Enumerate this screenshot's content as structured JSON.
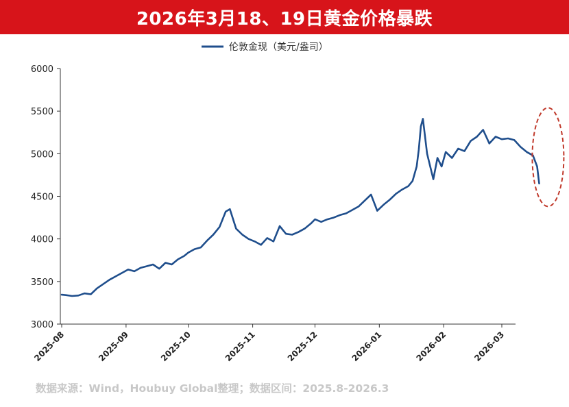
{
  "header": {
    "title": "2026年3月18、19日黄金价格暴跌"
  },
  "footer": {
    "source": "数据来源：Wind，Houbuy Global整理；数据区间：2025.8-2026.3"
  },
  "colors": {
    "title_bg": "#d7141a",
    "line": "#1f4e8c",
    "highlight": "#c0392b",
    "axis": "#333333"
  },
  "chart_data": {
    "type": "line",
    "title": "",
    "xlabel": "",
    "ylabel": "",
    "ylim": [
      3000,
      6000
    ],
    "yticks": [
      3000,
      3500,
      4000,
      4500,
      5000,
      5500,
      6000
    ],
    "xticks": [
      "2025-08",
      "2025-09",
      "2025-10",
      "2025-11",
      "2025-12",
      "2026-01",
      "2026-02",
      "2026-03"
    ],
    "grid": false,
    "legend": "top-center",
    "highlight": {
      "shape": "dashed-ellipse",
      "around": "2026-03 decline"
    },
    "series": [
      {
        "name": "伦敦金现（美元/盎司）",
        "x": [
          "2025-08-01",
          "2025-08-03",
          "2025-08-06",
          "2025-08-09",
          "2025-08-12",
          "2025-08-15",
          "2025-08-18",
          "2025-08-21",
          "2025-08-24",
          "2025-08-27",
          "2025-08-30",
          "2025-09-02",
          "2025-09-05",
          "2025-09-08",
          "2025-09-11",
          "2025-09-14",
          "2025-09-17",
          "2025-09-20",
          "2025-09-23",
          "2025-09-26",
          "2025-09-29",
          "2025-10-01",
          "2025-10-04",
          "2025-10-07",
          "2025-10-10",
          "2025-10-13",
          "2025-10-16",
          "2025-10-19",
          "2025-10-21",
          "2025-10-24",
          "2025-10-27",
          "2025-10-30",
          "2025-11-02",
          "2025-11-05",
          "2025-11-08",
          "2025-11-11",
          "2025-11-14",
          "2025-11-17",
          "2025-11-20",
          "2025-11-23",
          "2025-11-26",
          "2025-11-29",
          "2025-12-01",
          "2025-12-04",
          "2025-12-07",
          "2025-12-10",
          "2025-12-13",
          "2025-12-16",
          "2025-12-19",
          "2025-12-22",
          "2025-12-25",
          "2025-12-28",
          "2025-12-31",
          "2026-01-03",
          "2026-01-06",
          "2026-01-09",
          "2026-01-12",
          "2026-01-15",
          "2026-01-17",
          "2026-01-19",
          "2026-01-20",
          "2026-01-21",
          "2026-01-22",
          "2026-01-24",
          "2026-01-27",
          "2026-01-29",
          "2026-01-31",
          "2026-02-02",
          "2026-02-05",
          "2026-02-08",
          "2026-02-11",
          "2026-02-14",
          "2026-02-17",
          "2026-02-20",
          "2026-02-23",
          "2026-02-26",
          "2026-03-01",
          "2026-03-04",
          "2026-03-07",
          "2026-03-10",
          "2026-03-13",
          "2026-03-16",
          "2026-03-18",
          "2026-03-19"
        ],
        "values": [
          3345,
          3340,
          3330,
          3335,
          3360,
          3350,
          3420,
          3470,
          3520,
          3560,
          3600,
          3640,
          3620,
          3660,
          3680,
          3700,
          3650,
          3720,
          3700,
          3760,
          3800,
          3840,
          3880,
          3900,
          3980,
          4050,
          4140,
          4320,
          4350,
          4120,
          4050,
          4000,
          3970,
          3930,
          4010,
          3970,
          4150,
          4060,
          4050,
          4080,
          4120,
          4180,
          4230,
          4200,
          4230,
          4250,
          4280,
          4300,
          4340,
          4380,
          4450,
          4520,
          4330,
          4400,
          4460,
          4530,
          4580,
          4620,
          4680,
          4850,
          5050,
          5320,
          5410,
          5000,
          4700,
          4950,
          4850,
          5020,
          4950,
          5060,
          5030,
          5150,
          5200,
          5280,
          5120,
          5200,
          5170,
          5180,
          5160,
          5080,
          5020,
          4980,
          4850,
          4650
        ]
      }
    ]
  }
}
